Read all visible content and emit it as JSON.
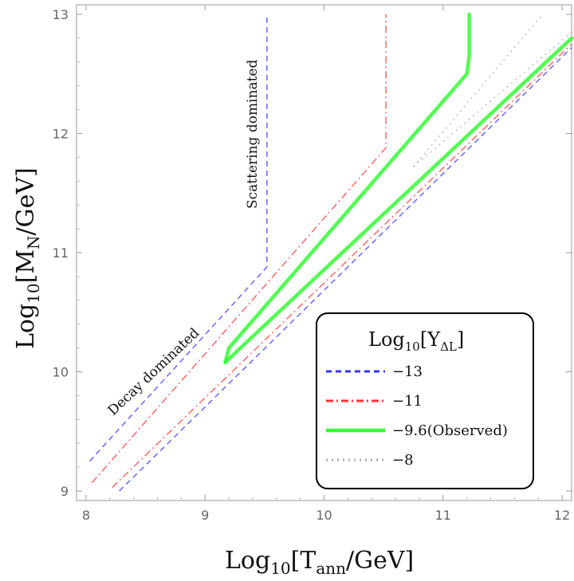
{
  "chart_data": {
    "type": "line",
    "xlabel": {
      "main": "Log",
      "sub": "10",
      "bracket": "[T",
      "subscript": "ann",
      "unit": "/GeV]"
    },
    "ylabel": {
      "main": "Log",
      "sub": "10",
      "bracket": "[M",
      "subscript": "N",
      "unit": "/GeV]"
    },
    "xlim": [
      7.92,
      12.08
    ],
    "ylim": [
      8.92,
      13.08
    ],
    "xticks": [
      "8",
      "9",
      "10",
      "11",
      "12"
    ],
    "yticks": [
      "9",
      "10",
      "11",
      "12",
      "13"
    ],
    "annotations": {
      "decay": "Decay dominated",
      "scattering": "Scattering dominated"
    },
    "legend": {
      "title": {
        "main": "Log",
        "sub": "10",
        "bracket": "[Y",
        "subscript": "ΔL",
        "close": "]"
      },
      "position": "bottom-right"
    },
    "series": [
      {
        "name": "−13",
        "color": "#3333ff",
        "style": "dashed",
        "upper": [
          [
            8.03,
            9.25
          ],
          [
            9.52,
            10.88
          ],
          [
            9.52,
            13.0
          ]
        ],
        "lower": [
          [
            8.28,
            9.0
          ],
          [
            12.08,
            12.72
          ]
        ]
      },
      {
        "name": "−11",
        "color": "#ff3333",
        "style": "dashdot",
        "upper": [
          [
            8.05,
            9.07
          ],
          [
            10.52,
            11.88
          ],
          [
            10.52,
            13.0
          ]
        ],
        "lower": [
          [
            8.22,
            9.03
          ],
          [
            12.08,
            12.75
          ]
        ]
      },
      {
        "name": "−9.6(Observed)",
        "color": "#33ff33",
        "style": "solid",
        "upper": [
          [
            9.17,
            10.08
          ],
          [
            9.2,
            10.2
          ],
          [
            11.2,
            12.5
          ],
          [
            11.22,
            12.65
          ],
          [
            11.22,
            13.0
          ]
        ],
        "lower": [
          [
            9.17,
            10.08
          ],
          [
            9.35,
            10.25
          ],
          [
            12.08,
            12.8
          ]
        ]
      },
      {
        "name": "−8",
        "color": "#aaaaaa",
        "style": "dotted",
        "upper": [
          [
            10.75,
            11.72
          ],
          [
            11.82,
            12.98
          ]
        ],
        "lower": [
          [
            10.75,
            11.72
          ],
          [
            12.08,
            12.85
          ]
        ]
      }
    ]
  }
}
